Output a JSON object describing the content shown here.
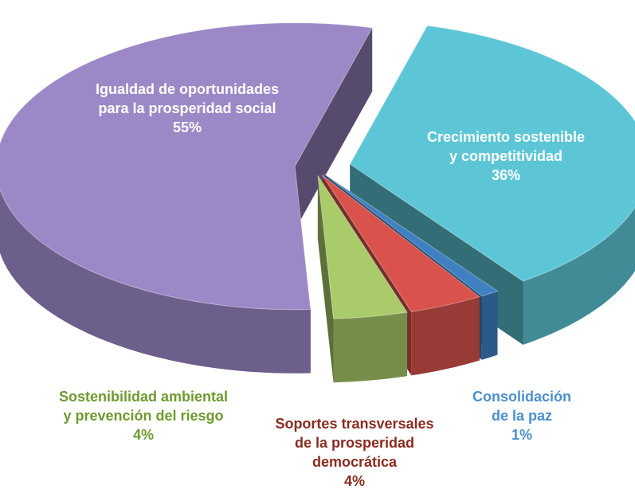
{
  "chart_data": {
    "type": "pie",
    "categories": [
      "Crecimiento sostenible\ny competitividad",
      "Consolidación\nde la paz",
      "Soportes transversales\nde la prosperidad\ndemocrática",
      "Sostenibilidad ambiental\ny prevención del riesgo",
      "Igualdad de oportunidades\npara la prosperidad social"
    ],
    "values": [
      36,
      1,
      4,
      4,
      55
    ],
    "value_labels": [
      "36%",
      "1%",
      "4%",
      "4%",
      "55%"
    ],
    "colors": [
      "#5cc6d6",
      "#3f80c2",
      "#d9534c",
      "#a9cb6a",
      "#9c88c6"
    ]
  }
}
